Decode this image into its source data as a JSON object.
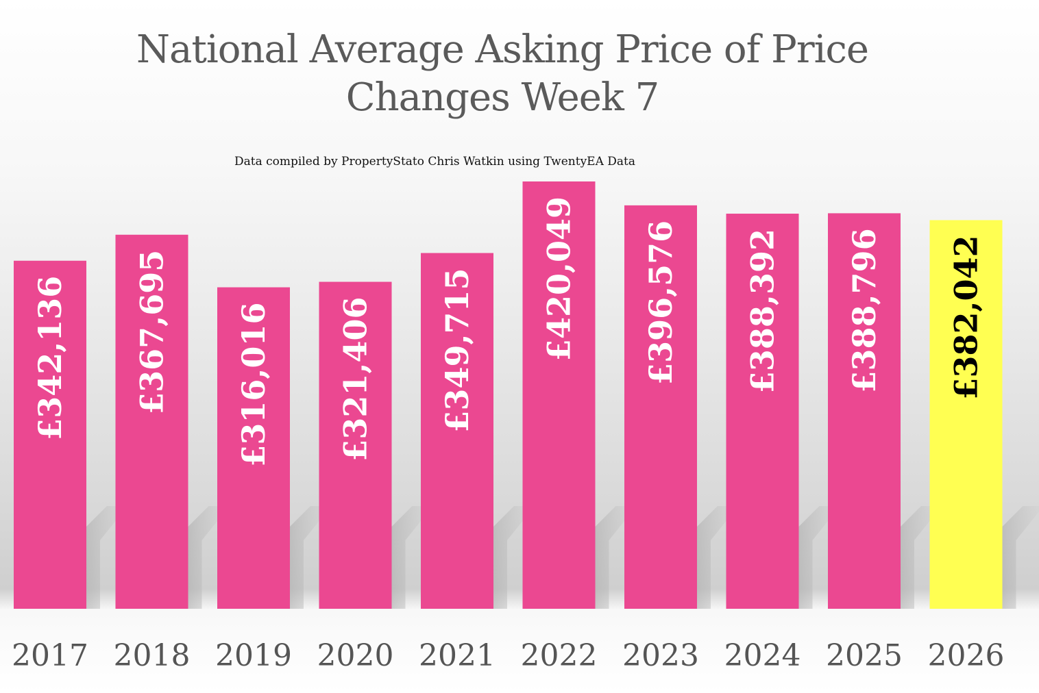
{
  "chart_data": {
    "type": "bar",
    "title": "National Average Asking Price of Price Changes Week 7",
    "subtitle": "Data compiled by PropertyStato Chris Watkin using TwentyEA Data",
    "xlabel": "",
    "ylabel": "",
    "grid": false,
    "legend": "none",
    "categories": [
      "2017",
      "2018",
      "2019",
      "2020",
      "2021",
      "2022",
      "2023",
      "2024",
      "2025",
      "2026"
    ],
    "values": [
      342136,
      367695,
      316016,
      321406,
      349715,
      420049,
      396576,
      388392,
      388796,
      382042
    ],
    "data_labels": [
      "£342,136",
      "£367,695",
      "£316,016",
      "£321,406",
      "£349,715",
      "£420,049",
      "£396,576",
      "£388,392",
      "£388,796",
      "£382,042"
    ],
    "highlight_index": 9,
    "colors": {
      "bar": "#EB4891",
      "highlight_bar": "#FFFF52",
      "label_on_bar": "#FFFFFF",
      "label_on_highlight": "#000000",
      "axis_text": "#555555"
    },
    "ylim": [
      0,
      420049
    ]
  }
}
